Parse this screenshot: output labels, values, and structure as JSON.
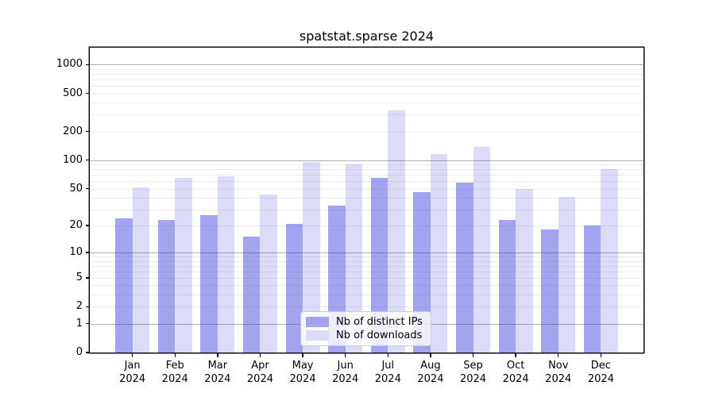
{
  "chart_data": {
    "type": "bar",
    "title": "spatstat.sparse 2024",
    "categories": [
      "Jan",
      "Feb",
      "Mar",
      "Apr",
      "May",
      "Jun",
      "Jul",
      "Aug",
      "Sep",
      "Oct",
      "Nov",
      "Dec"
    ],
    "x_sub_label": "2024",
    "series": [
      {
        "name": "Nb of distinct IPs",
        "color": "#a3a3f0",
        "values": [
          24,
          23,
          26,
          15,
          21,
          33,
          65,
          46,
          58,
          23,
          18,
          20
        ]
      },
      {
        "name": "Nb of downloads",
        "color": "#dcdcf8",
        "values": [
          52,
          65,
          68,
          43,
          96,
          91,
          330,
          115,
          137,
          50,
          41,
          81
        ]
      }
    ],
    "yscale": "log1p",
    "y_ticks": [
      0,
      1,
      2,
      5,
      10,
      20,
      50,
      100,
      200,
      500,
      1000
    ],
    "ylim": [
      0,
      1500
    ],
    "xlabel": "",
    "ylabel": "",
    "grid": "horizontal, log majors at 1/10/100/1000 with faint minors",
    "legend_position": "bottom-center-inside"
  },
  "colors": {
    "background": "#ffffff",
    "axis": "#000000",
    "grid_major": "#ababab",
    "grid_minor": "#ececec",
    "legend_border": "#cccccc"
  }
}
